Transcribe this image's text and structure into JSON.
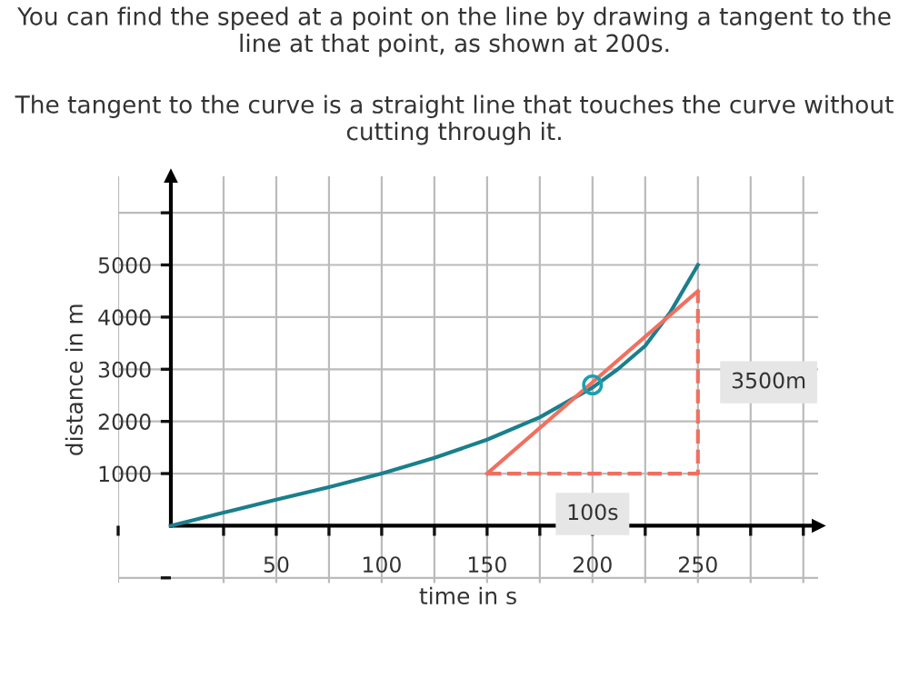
{
  "chart_data": {
    "type": "line",
    "title": "You can find the speed at a point on the line by drawing a tangent to the line at that point, as shown at 200s.",
    "subtitle": "The tangent to the curve is a straight line that touches the curve without cutting through it.",
    "xlabel": "time in s",
    "ylabel": "distance in m",
    "series": [
      {
        "color": "#1a7f8c",
        "x": [
          0,
          25,
          50,
          75,
          100,
          125,
          150,
          175,
          200,
          212,
          225,
          237,
          250
        ],
        "values": [
          0,
          250,
          500,
          740,
          1000,
          1300,
          1650,
          2080,
          2650,
          3000,
          3450,
          4100,
          5000
        ]
      },
      {
        "color": "#f07060",
        "x": [
          150,
          250
        ],
        "values": [
          1000,
          4500
        ]
      },
      {
        "color": "#f07060",
        "line_style": "dashed",
        "x": [
          150,
          250,
          250
        ],
        "values": [
          1000,
          1000,
          4500
        ]
      },
      {
        "type": "scatter",
        "color": "#1a9fb0",
        "marker": "circle",
        "x": [
          200
        ],
        "values": [
          2700
        ]
      }
    ],
    "annotations": [
      {
        "text": "3500m",
        "x": 250,
        "y": 2750
      },
      {
        "text": "100s",
        "x": 200,
        "y": 1000
      }
    ],
    "xlim": [
      -25,
      307
    ],
    "ylim": [
      -1100,
      6700
    ],
    "xticks": [
      {
        "value": -25,
        "label": null
      },
      {
        "value": 25,
        "label": null
      },
      50,
      {
        "value": 75,
        "label": null
      },
      100,
      {
        "value": 125,
        "label": null
      },
      150,
      {
        "value": 175,
        "label": null
      },
      200,
      {
        "value": 225,
        "label": null
      },
      250,
      {
        "value": 275,
        "label": null
      },
      {
        "value": 300,
        "label": null
      }
    ],
    "yticks": [
      {
        "value": -1000,
        "label": null
      },
      1000,
      2000,
      3000,
      4000,
      5000,
      {
        "value": 6000,
        "label": null
      }
    ],
    "grid": true
  }
}
